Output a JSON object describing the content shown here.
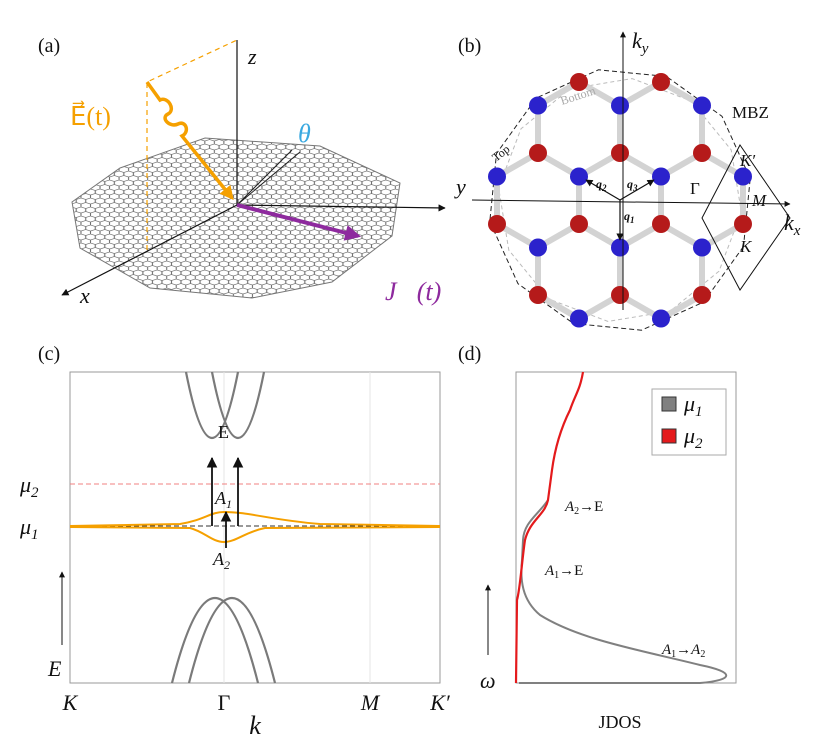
{
  "panel_a": {
    "label": "(a)",
    "axis_z": "z",
    "axis_y": "y",
    "axis_x": "x",
    "field": "E⃗(t)",
    "angle": "θ",
    "current": "J⃗(t)"
  },
  "panel_b": {
    "label": "(b)",
    "axis_ky": {
      "base": "k",
      "sub": "y"
    },
    "axis_kx": {
      "base": "k",
      "sub": "x"
    },
    "zone": "MBZ",
    "top": "Top",
    "bottom": "Bottom",
    "vectors": [
      {
        "base": "q",
        "sub": "1"
      },
      {
        "base": "q",
        "sub": "2"
      },
      {
        "base": "q",
        "sub": "3"
      }
    ],
    "points": [
      "K′",
      "Γ",
      "M",
      "K"
    ]
  },
  "panel_c": {
    "label": "(c)",
    "levels": [
      {
        "base": "μ",
        "sub": "2"
      },
      {
        "base": "μ",
        "sub": "1"
      }
    ],
    "band_E": "E",
    "band_A1": {
      "base": "A",
      "sub": "1"
    },
    "band_A2": {
      "base": "A",
      "sub": "2"
    },
    "energy": "E",
    "kticks": [
      "K",
      "Γ",
      "M",
      "K′"
    ],
    "kaxis": "k"
  },
  "panel_d": {
    "label": "(d)",
    "legend": [
      {
        "base": "μ",
        "sub": "1",
        "color": "#808080"
      },
      {
        "base": "μ",
        "sub": "2",
        "color": "#e41a1c"
      }
    ],
    "transitions": [
      {
        "from": {
          "base": "A",
          "sub": "2"
        },
        "arrow": "→",
        "to": "E"
      },
      {
        "from": {
          "base": "A",
          "sub": "1"
        },
        "arrow": "→",
        "to": "E"
      },
      {
        "from": {
          "base": "A",
          "sub": "1"
        },
        "arrow": "→",
        "to": {
          "base": "A",
          "sub": "2"
        }
      }
    ],
    "omega": "ω",
    "xlabel": "JDOS"
  }
}
